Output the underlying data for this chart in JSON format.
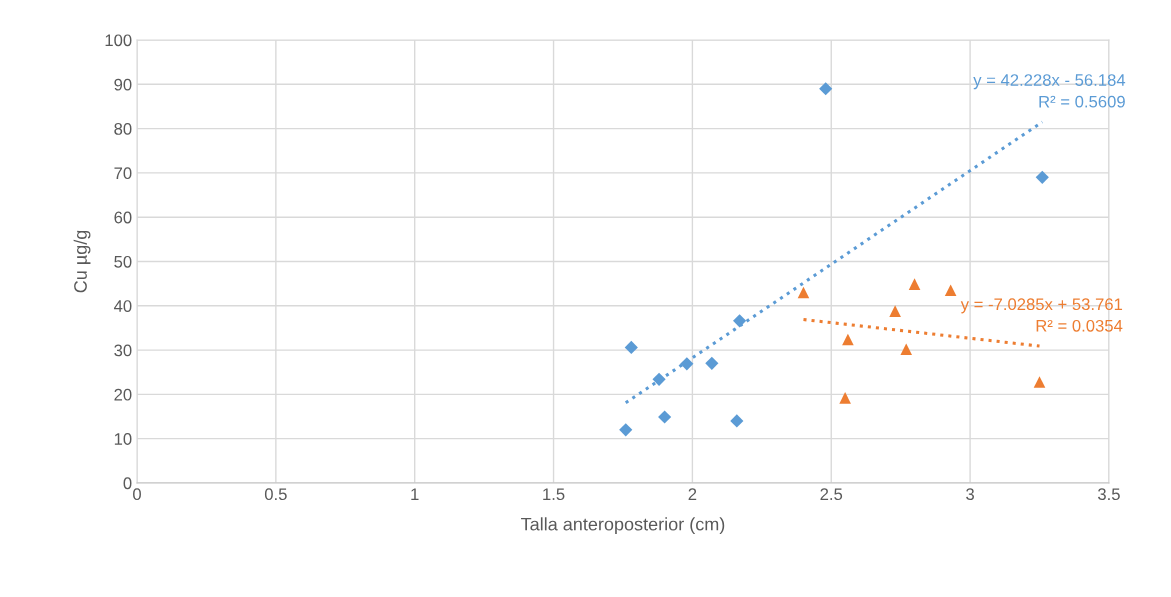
{
  "chart_data": {
    "type": "scatter",
    "xlabel": "Talla anteroposterior (cm)",
    "ylabel": "Cu µg/g",
    "xlim": [
      0,
      3.5
    ],
    "xticks": [
      0,
      0.5,
      1,
      1.5,
      2,
      2.5,
      3,
      3.5
    ],
    "ylim": [
      0,
      100
    ],
    "yticks": [
      0,
      10,
      20,
      30,
      40,
      50,
      60,
      70,
      80,
      90,
      100
    ],
    "grid": true,
    "series": [
      {
        "color": "#5b9bd5",
        "marker": "diamond",
        "x": [
          1.76,
          1.78,
          1.88,
          1.9,
          1.98,
          2.07,
          2.16,
          2.17,
          2.48,
          3.26
        ],
        "values": [
          12.0,
          30.6,
          23.4,
          14.9,
          26.9,
          27.0,
          14.0,
          36.6,
          89.0,
          69.0
        ]
      },
      {
        "color": "#ed7d31",
        "marker": "triangle",
        "x": [
          2.4,
          2.55,
          2.56,
          2.73,
          2.77,
          2.8,
          2.93,
          3.25
        ],
        "values": [
          43.0,
          19.2,
          32.4,
          38.8,
          30.2,
          44.9,
          43.5,
          22.8
        ]
      },
      {
        "type": "line",
        "line_style": "dotted",
        "marker": "none",
        "color": "#5b9bd5",
        "x": [
          1.76,
          3.26
        ],
        "values": [
          18.1,
          81.5
        ]
      },
      {
        "type": "line",
        "line_style": "dotted",
        "marker": "none",
        "color": "#ed7d31",
        "x": [
          2.4,
          3.25
        ],
        "values": [
          36.9,
          30.9
        ]
      }
    ],
    "annotations": [
      {
        "text": "y = 42.228x - 56.184\nR² = 0.5609",
        "x": 3.26,
        "y": 81.5
      },
      {
        "text": "y = -7.0285x + 53.761\nR² = 0.0354",
        "x": 3.25,
        "y": 30.9
      }
    ]
  }
}
